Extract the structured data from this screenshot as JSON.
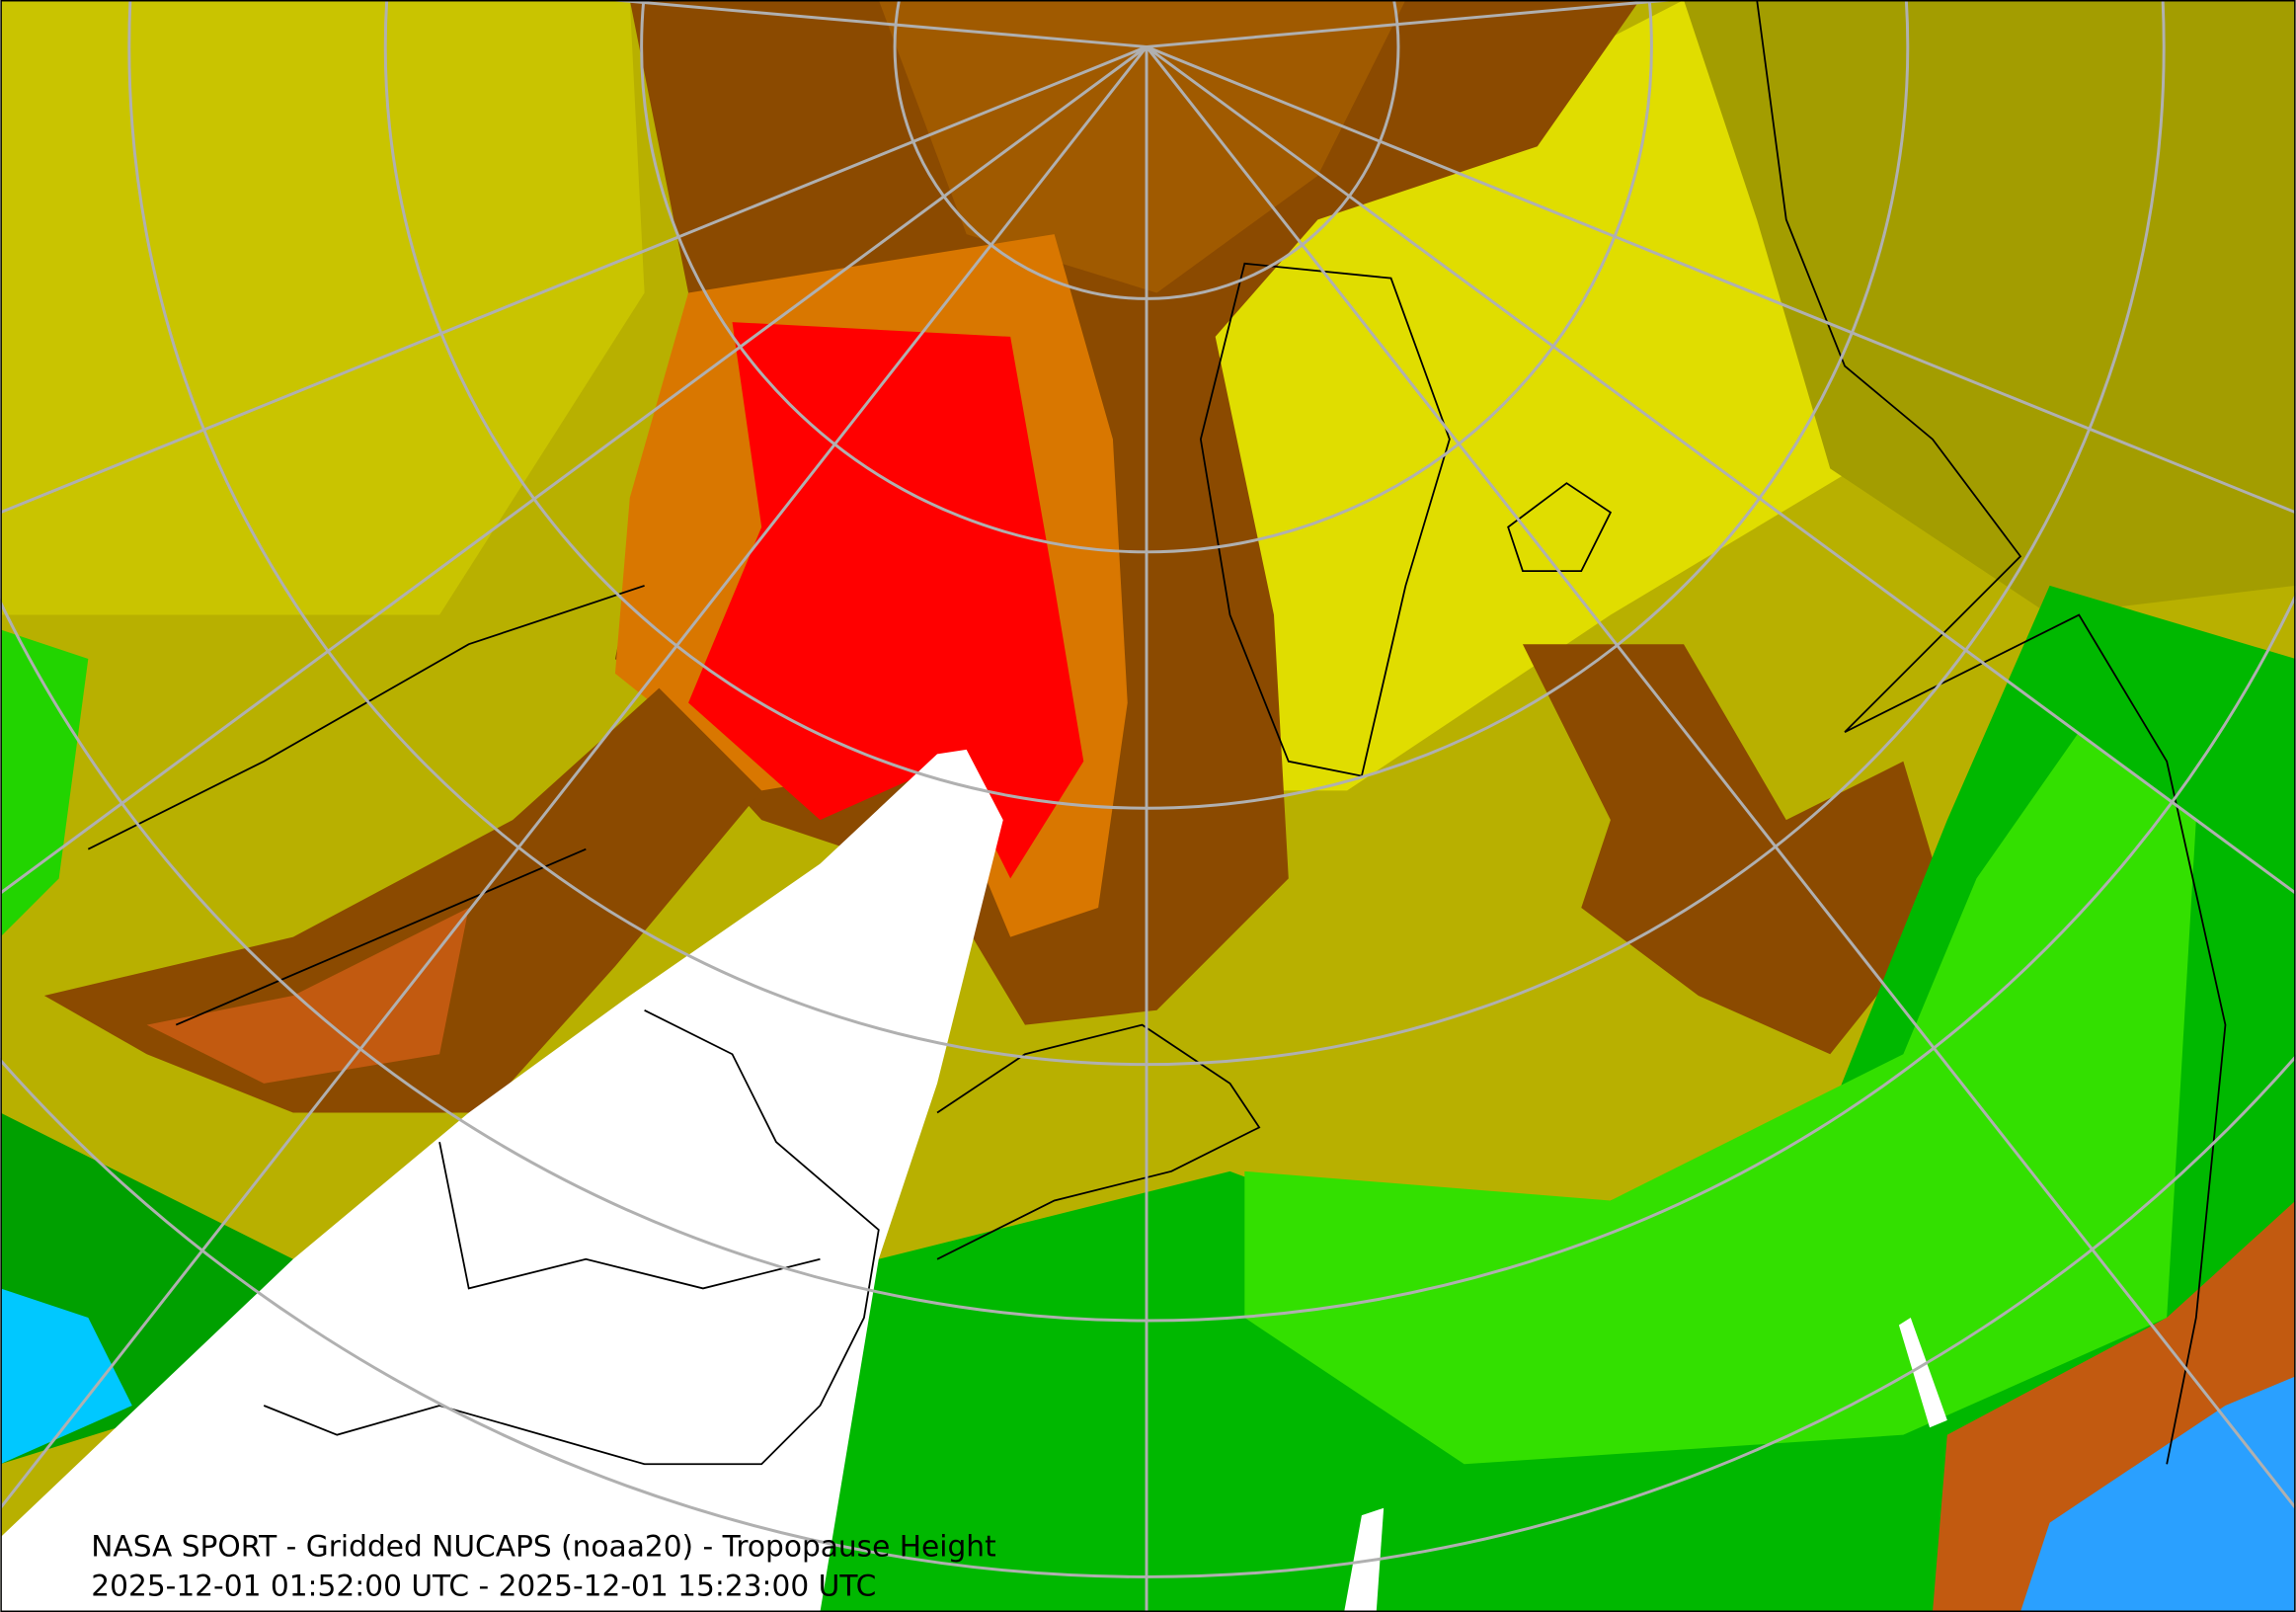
{
  "caption": {
    "title": "NASA SPORT - Gridded NUCAPS (noaa20) - Tropopause Height",
    "time_range": "2025-12-01 01:52:00 UTC - 2025-12-01 15:23:00 UTC"
  }
}
